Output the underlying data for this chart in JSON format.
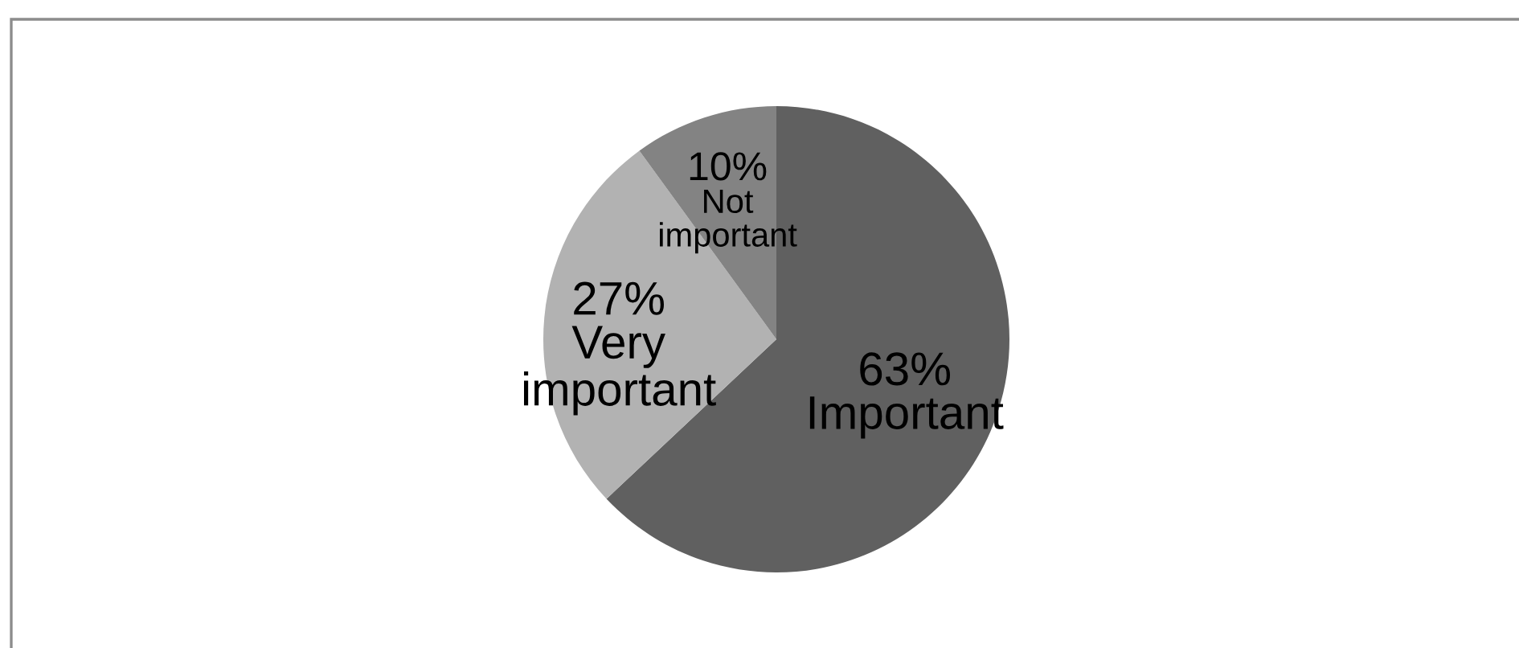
{
  "chart_data": {
    "type": "pie",
    "categories": [
      "Important",
      "Very important",
      "Not important"
    ],
    "values": [
      63,
      27,
      10
    ],
    "colors": [
      "#606060",
      "#b2b2b2",
      "#838383"
    ],
    "value_labels": [
      "63%",
      "27%",
      "10%"
    ]
  }
}
